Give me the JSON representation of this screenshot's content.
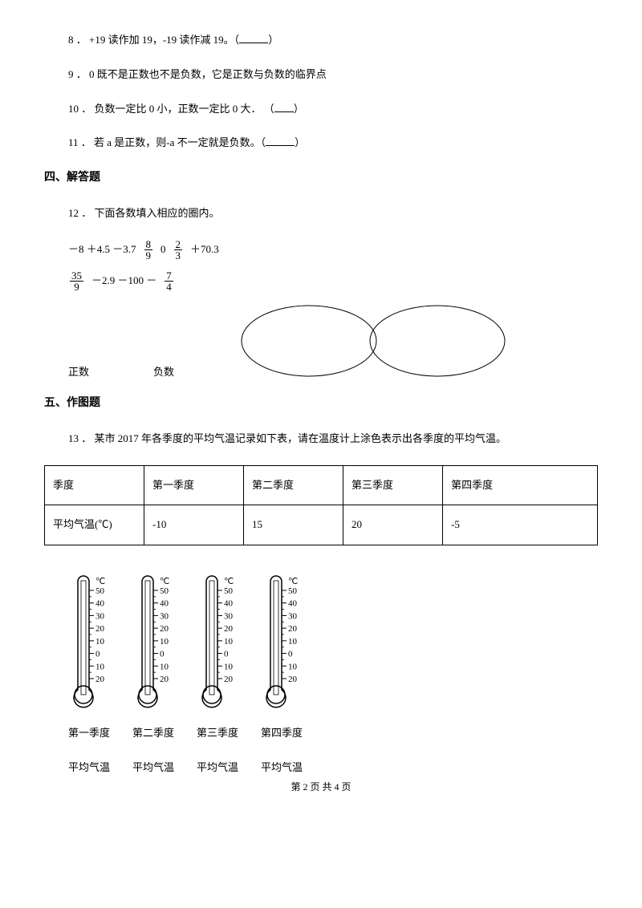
{
  "q8": {
    "num": "8 ．",
    "text_a": "+19 读作加 19，-19 读作减 19。（",
    "text_b": "）"
  },
  "q9": {
    "num": "9 ．",
    "text": "0 既不是正数也不是负数，它是正数与负数的临界点"
  },
  "q10": {
    "num": "10 ．",
    "text_a": "负数一定比 0 小，正数一定比 0 大．  （",
    "text_b": "）"
  },
  "q11": {
    "num": "11 ．",
    "text_a": "若 a 是正数，则-a 不一定就是负数。（",
    "text_b": "）"
  },
  "section4": "四、解答题",
  "q12": {
    "num": "12 ．",
    "text": "下面各数填入相应的圈内。"
  },
  "expr_row1": {
    "a": "－8  ＋4.5  －3.7",
    "f1_num": "8",
    "f1_den": "9",
    "b": "0",
    "f2_num": "2",
    "f2_den": "3",
    "c": " ＋70.3"
  },
  "expr_row2": {
    "f1_num": "35",
    "f1_den": "9",
    "a": "－2.9  －100  －",
    "f2_num": "7",
    "f2_den": "4"
  },
  "oval_labels": {
    "pos": "正数",
    "neg": "负数"
  },
  "section5": "五、作图题",
  "q13": {
    "num": "13 ．",
    "text": "某市 2017 年各季度的平均气温记录如下表，请在温度计上涂色表示出各季度的平均气温。"
  },
  "table": {
    "header": [
      "季度",
      "第一季度",
      "第二季度",
      "第三季度",
      "第四季度"
    ],
    "row_label": "平均气温(℃)",
    "values": [
      "-10",
      "15",
      "20",
      "-5"
    ]
  },
  "thermo": {
    "unit": "℃",
    "ticks": [
      "50",
      "40",
      "30",
      "20",
      "10",
      "0",
      "10",
      "20"
    ]
  },
  "quarter_labels": [
    "第一季度",
    "第二季度",
    "第三季度",
    "第四季度"
  ],
  "avg_label": "平均气温",
  "footer": "第 2 页 共 4 页"
}
